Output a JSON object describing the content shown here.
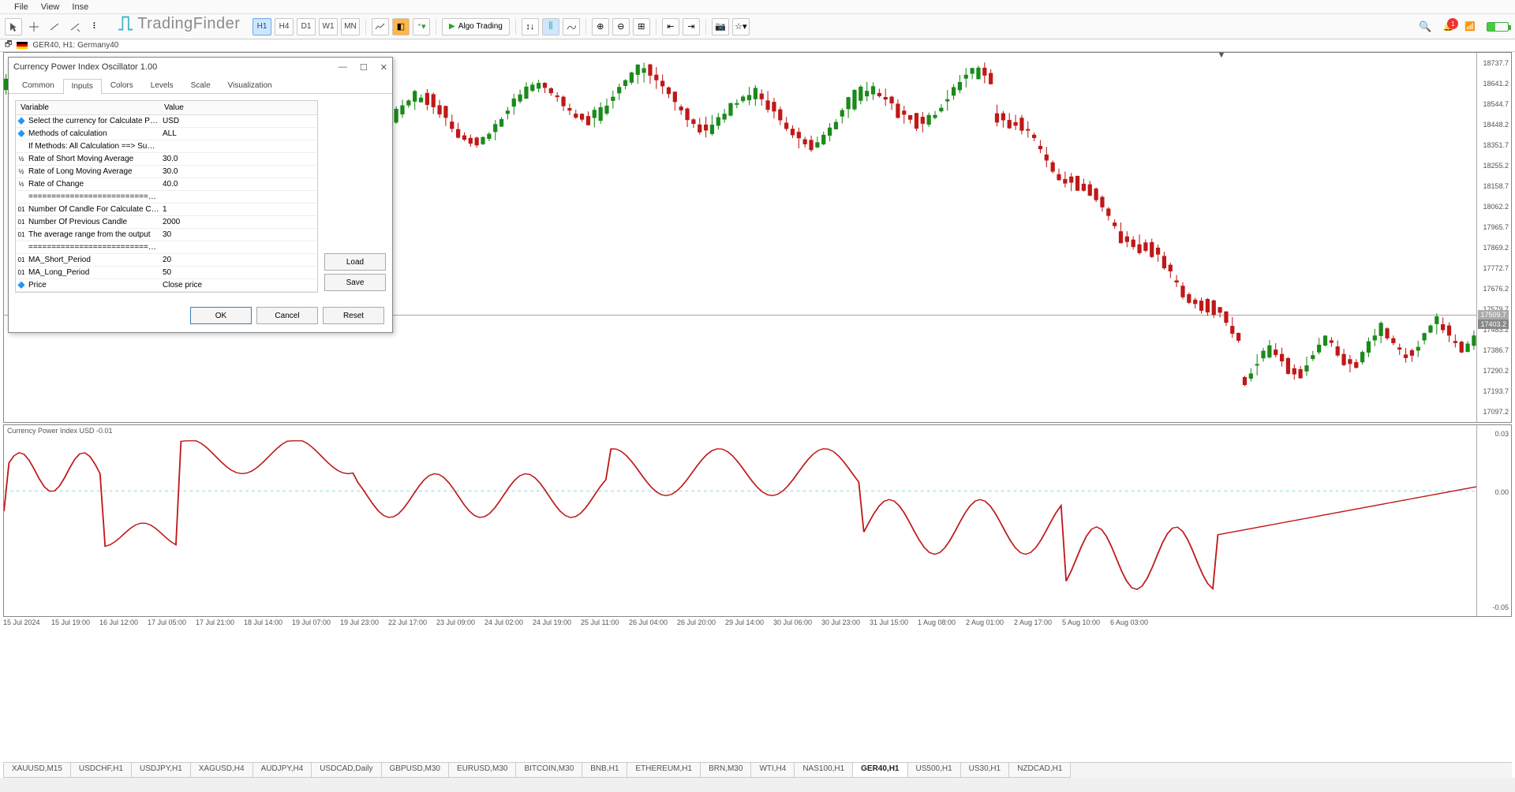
{
  "menubar": [
    "File",
    "View",
    "Inse"
  ],
  "logo": "TradingFinder",
  "timeframes": [
    {
      "label": "H1",
      "active": true
    },
    {
      "label": "H4",
      "active": false
    },
    {
      "label": "D1",
      "active": false
    },
    {
      "label": "W1",
      "active": false
    },
    {
      "label": "MN",
      "active": false
    }
  ],
  "algo_label": "Algo Trading",
  "symbol_bar": "GER40, H1: Germany40",
  "price_axis": [
    "18737.7",
    "18641.2",
    "18544.7",
    "18448.2",
    "18351.7",
    "18255.2",
    "18158.7",
    "18062.2",
    "17965.7",
    "17869.2",
    "17772.7",
    "17676.2",
    "17579.7",
    "17483.2",
    "17386.7",
    "17290.2",
    "17193.7",
    "17097.2"
  ],
  "current_price": "17403.2",
  "current_price_sub": "17509.7",
  "indicator_label": "Currency Power Index USD -0.01",
  "ind_axis": [
    "0.03",
    "0.00",
    "-0.05"
  ],
  "x_dates": [
    "15 Jul 2024",
    "15 Jul 19:00",
    "16 Jul 12:00",
    "17 Jul 05:00",
    "17 Jul 21:00",
    "18 Jul 14:00",
    "19 Jul 07:00",
    "19 Jul 23:00",
    "22 Jul 17:00",
    "23 Jul 09:00",
    "24 Jul 02:00",
    "24 Jul 19:00",
    "25 Jul 11:00",
    "26 Jul 04:00",
    "26 Jul 20:00",
    "29 Jul 14:00",
    "30 Jul 06:00",
    "30 Jul 23:00",
    "31 Jul 15:00",
    "1 Aug 08:00",
    "2 Aug 01:00",
    "2 Aug 17:00",
    "5 Aug 10:00",
    "6 Aug 03:00"
  ],
  "bottom_tabs": [
    {
      "label": "XAUUSD,M15",
      "active": false
    },
    {
      "label": "USDCHF,H1",
      "active": false
    },
    {
      "label": "USDJPY,H1",
      "active": false
    },
    {
      "label": "XAGUSD,H4",
      "active": false
    },
    {
      "label": "AUDJPY,H4",
      "active": false
    },
    {
      "label": "USDCAD,Daily",
      "active": false
    },
    {
      "label": "GBPUSD,M30",
      "active": false
    },
    {
      "label": "EURUSD,M30",
      "active": false
    },
    {
      "label": "BITCOIN,M30",
      "active": false
    },
    {
      "label": "BNB,H1",
      "active": false
    },
    {
      "label": "ETHEREUM,H1",
      "active": false
    },
    {
      "label": "BRN,M30",
      "active": false
    },
    {
      "label": "WTI,H4",
      "active": false
    },
    {
      "label": "NAS100,H1",
      "active": false
    },
    {
      "label": "GER40,H1",
      "active": true
    },
    {
      "label": "US500,H1",
      "active": false
    },
    {
      "label": "US30,H1",
      "active": false
    },
    {
      "label": "NZDCAD,H1",
      "active": false
    }
  ],
  "dialog": {
    "title": "Currency Power Index Oscillator 1.00",
    "tabs": [
      "Common",
      "Inputs",
      "Colors",
      "Levels",
      "Scale",
      "Visualization"
    ],
    "active_tab": "Inputs",
    "headers": {
      "variable": "Variable",
      "value": "Value"
    },
    "rows": [
      {
        "icon": "🔷",
        "var": "Select the currency for Calculate Power",
        "val": "USD"
      },
      {
        "icon": "🔷",
        "var": "Methods of calculation",
        "val": "ALL"
      },
      {
        "icon": "",
        "var": "If Methods: All Calculation  ==> Sum of the…",
        "val": ""
      },
      {
        "icon": "½",
        "var": "Rate of Short Moving Average",
        "val": "30.0"
      },
      {
        "icon": "½",
        "var": "Rate of Long Moving Average",
        "val": "30.0"
      },
      {
        "icon": "½",
        "var": "Rate of Change",
        "val": "40.0"
      },
      {
        "icon": "",
        "var": "=================================…",
        "val": ""
      },
      {
        "icon": "01",
        "var": "Number Of Candle For Calculate Curren…",
        "val": "1"
      },
      {
        "icon": "01",
        "var": "Number Of Previous Candle",
        "val": "2000"
      },
      {
        "icon": "01",
        "var": "The average range from the output",
        "val": "30"
      },
      {
        "icon": "",
        "var": "=================================…",
        "val": ""
      },
      {
        "icon": "01",
        "var": "MA_Short_Period",
        "val": "20"
      },
      {
        "icon": "01",
        "var": "MA_Long_Period",
        "val": "50"
      },
      {
        "icon": "🔷",
        "var": "Price",
        "val": "Close price"
      }
    ],
    "buttons": {
      "load": "Load",
      "save": "Save",
      "ok": "OK",
      "cancel": "Cancel",
      "reset": "Reset"
    }
  },
  "chart": {
    "candle_up": "#1a8a1a",
    "candle_dn": "#c01818",
    "osc_color": "#c01818",
    "dash_color": "#7dd3d8"
  }
}
